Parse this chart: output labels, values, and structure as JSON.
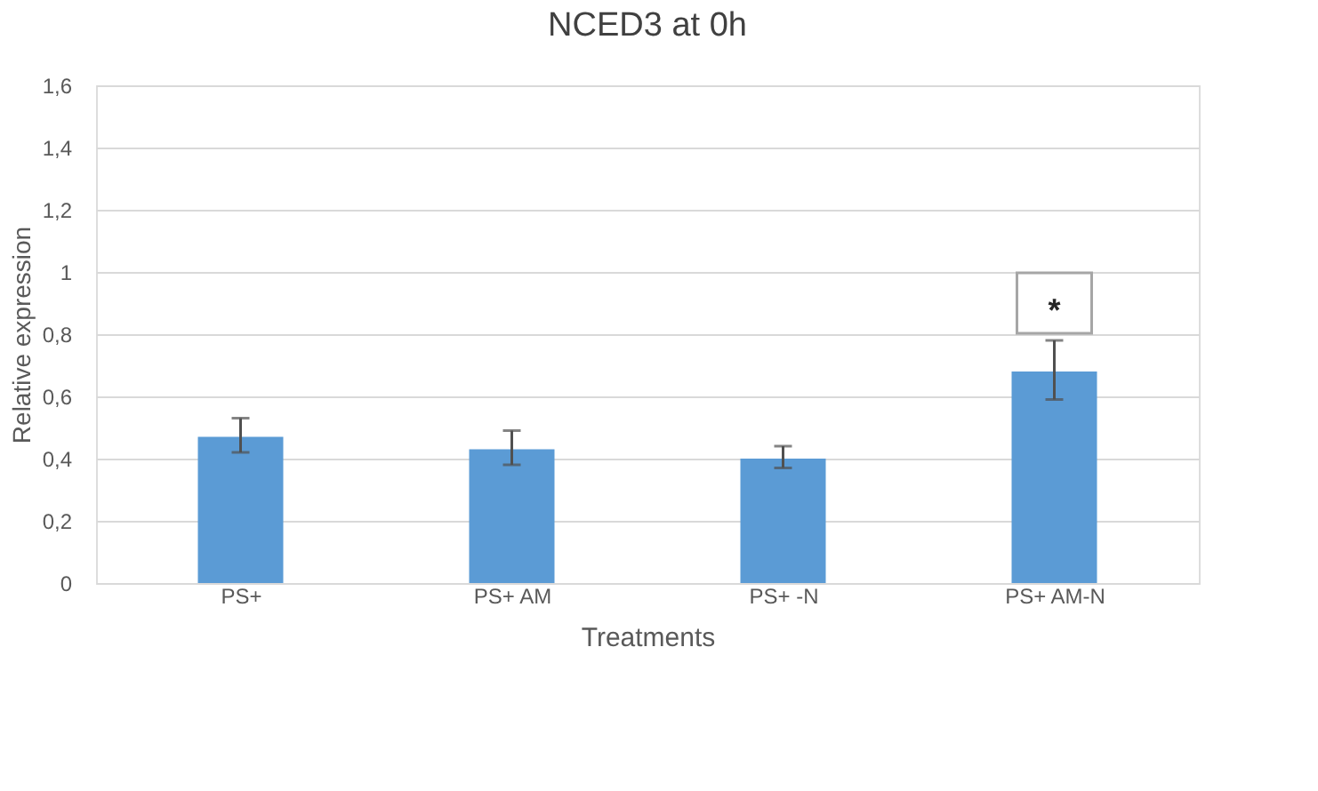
{
  "chart_data": {
    "type": "bar",
    "title": "NCED3 at 0h",
    "xlabel": "Treatments",
    "ylabel": "Relative expression",
    "categories": [
      "PS+",
      "PS+ AM",
      "PS+ -N",
      "PS+ AM-N"
    ],
    "values": [
      0.47,
      0.43,
      0.4,
      0.68
    ],
    "errors": [
      [
        0.42,
        0.53
      ],
      [
        0.38,
        0.49
      ],
      [
        0.37,
        0.44
      ],
      [
        0.59,
        0.78
      ]
    ],
    "color": "#5b9bd5",
    "ylim": [
      0,
      1.6
    ],
    "yticks": [
      0,
      {
        "value": 0.2,
        "label": "0,2"
      },
      {
        "value": 0.4,
        "label": "0,4"
      },
      {
        "value": 0.6,
        "label": "0,6"
      },
      {
        "value": 0.8,
        "label": "0,8"
      },
      1,
      {
        "value": 1.2,
        "label": "1,2"
      },
      {
        "value": 1.4,
        "label": "1,4"
      },
      {
        "value": 1.6,
        "label": "1,6"
      }
    ],
    "grid": "y",
    "annotations": [
      {
        "text": "*",
        "x": "PS+ AM-N",
        "y": 0.9
      }
    ]
  }
}
